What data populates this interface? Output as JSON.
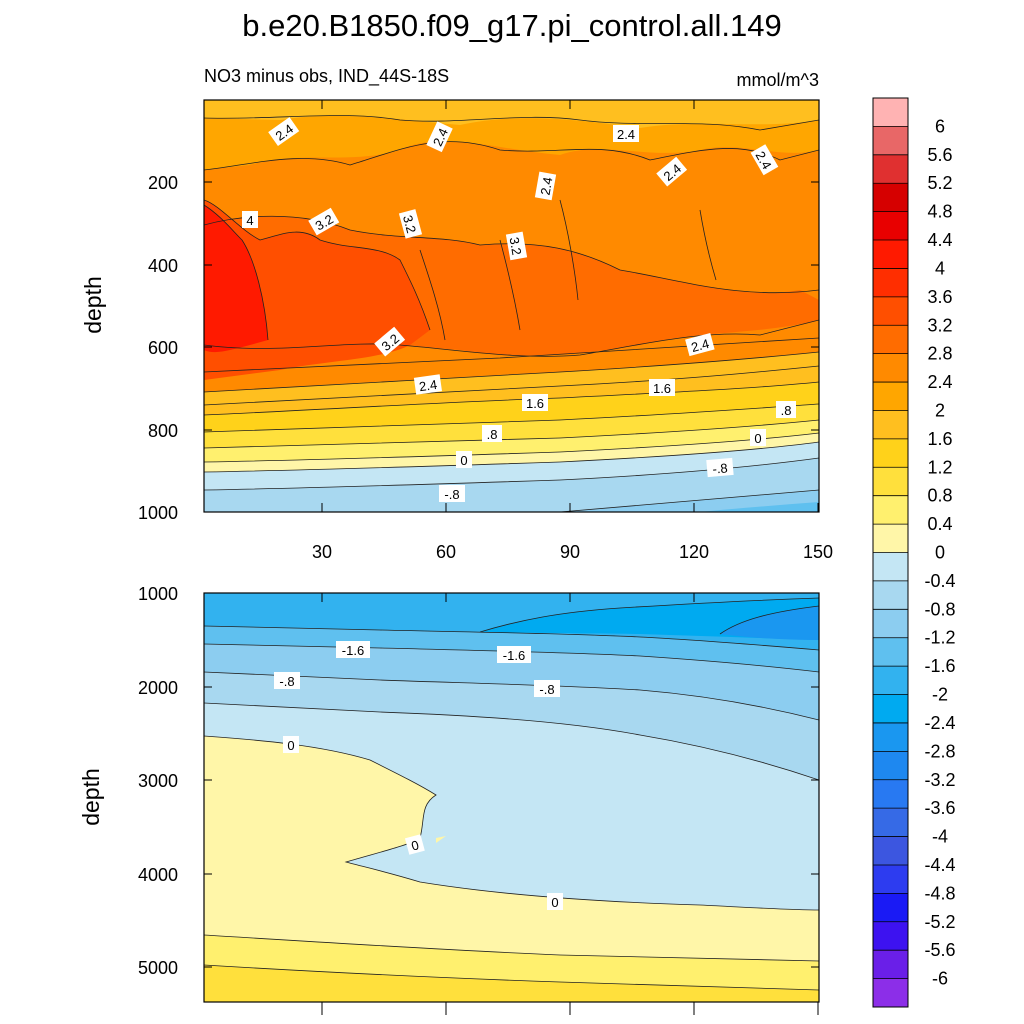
{
  "title": "b.e20.B1850.f09_g17.pi_control.all.149",
  "colorbar": {
    "labels": [
      "6",
      "5.6",
      "5.2",
      "4.8",
      "4.4",
      "4",
      "3.6",
      "3.2",
      "2.8",
      "2.4",
      "2",
      "1.6",
      "1.2",
      "0.8",
      "0.4",
      "0",
      "-0.4",
      "-0.8",
      "-1.2",
      "-1.6",
      "-2",
      "-2.4",
      "-2.8",
      "-3.2",
      "-3.6",
      "-4",
      "-4.4",
      "-4.8",
      "-5.2",
      "-5.6",
      "-6"
    ],
    "colors": [
      "#ffb3b3",
      "#e86767",
      "#e03030",
      "#d60000",
      "#e80000",
      "#ff1a00",
      "#ff2e00",
      "#ff4f00",
      "#ff6c00",
      "#ff8a00",
      "#ffa600",
      "#ffbf1f",
      "#ffd21a",
      "#ffe03c",
      "#fff06e",
      "#fff6a8",
      "#c4e6f4",
      "#a8d8f0",
      "#8ccdf0",
      "#5fc0ef",
      "#32b2ef",
      "#00aaf0",
      "#1a97f0",
      "#1e88f0",
      "#2879f2",
      "#366ae6",
      "#3c56e0",
      "#2d3cf0",
      "#1a1af5",
      "#3d12f0",
      "#6a1fe8",
      "#8c2ee8"
    ]
  },
  "chart_data": [
    {
      "type": "contour",
      "subtitle": "NO3 minus obs, IND_44S-18S",
      "units": "mmol/m^3",
      "xlabel": "",
      "ylabel": "depth",
      "xlim": [
        0,
        152
      ],
      "ylim": [
        1000,
        0
      ],
      "xticks": [
        "30",
        "60",
        "90",
        "120",
        "150"
      ],
      "yticks": [
        "200",
        "400",
        "600",
        "800",
        "1000"
      ],
      "contour_labels": [
        "2.4",
        "2.4",
        "2.4",
        "2.4",
        "2.4",
        "2.4",
        "4",
        "3.2",
        "3.2",
        "3.2",
        "3.2",
        "2.4",
        "2.4",
        "1.6",
        "1.6",
        ".8",
        ".8",
        "0",
        "0",
        "-.8",
        "-.8"
      ]
    },
    {
      "type": "contour",
      "subtitle": "",
      "units": "",
      "xlabel": "",
      "ylabel": "depth",
      "xlim": [
        0,
        152
      ],
      "ylim": [
        5400,
        1000
      ],
      "xticks": [],
      "yticks": [
        "1000",
        "2000",
        "3000",
        "4000",
        "5000"
      ],
      "contour_labels": [
        "-1.6",
        "-1.6",
        "-.8",
        "-.8",
        "0",
        "0",
        "0"
      ]
    }
  ]
}
